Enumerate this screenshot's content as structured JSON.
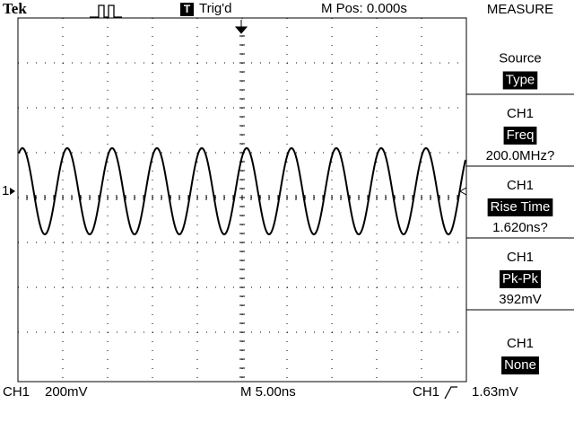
{
  "header": {
    "brand": "Tek",
    "trigger_icon": "T",
    "trigger_status": "Trig'd",
    "position": "M Pos: 0.000s"
  },
  "channel_marker": "1",
  "menu": {
    "title": "MEASURE",
    "items": [
      {
        "label": "Source",
        "value": "Type"
      },
      {
        "label": "CH1",
        "value": "Freq",
        "reading": "200.0MHz?"
      },
      {
        "label": "CH1",
        "value": "Rise Time",
        "reading": "1.620ns?"
      },
      {
        "label": "CH1",
        "value": "Pk-Pk",
        "reading": "392mV"
      },
      {
        "label": "CH1",
        "value": "None"
      }
    ]
  },
  "footer": {
    "channel": "CH1",
    "volts_per_div": "200mV",
    "timebase": "M 5.00ns",
    "trigger_source": "CH1",
    "trigger_level": "1.63mV"
  }
}
